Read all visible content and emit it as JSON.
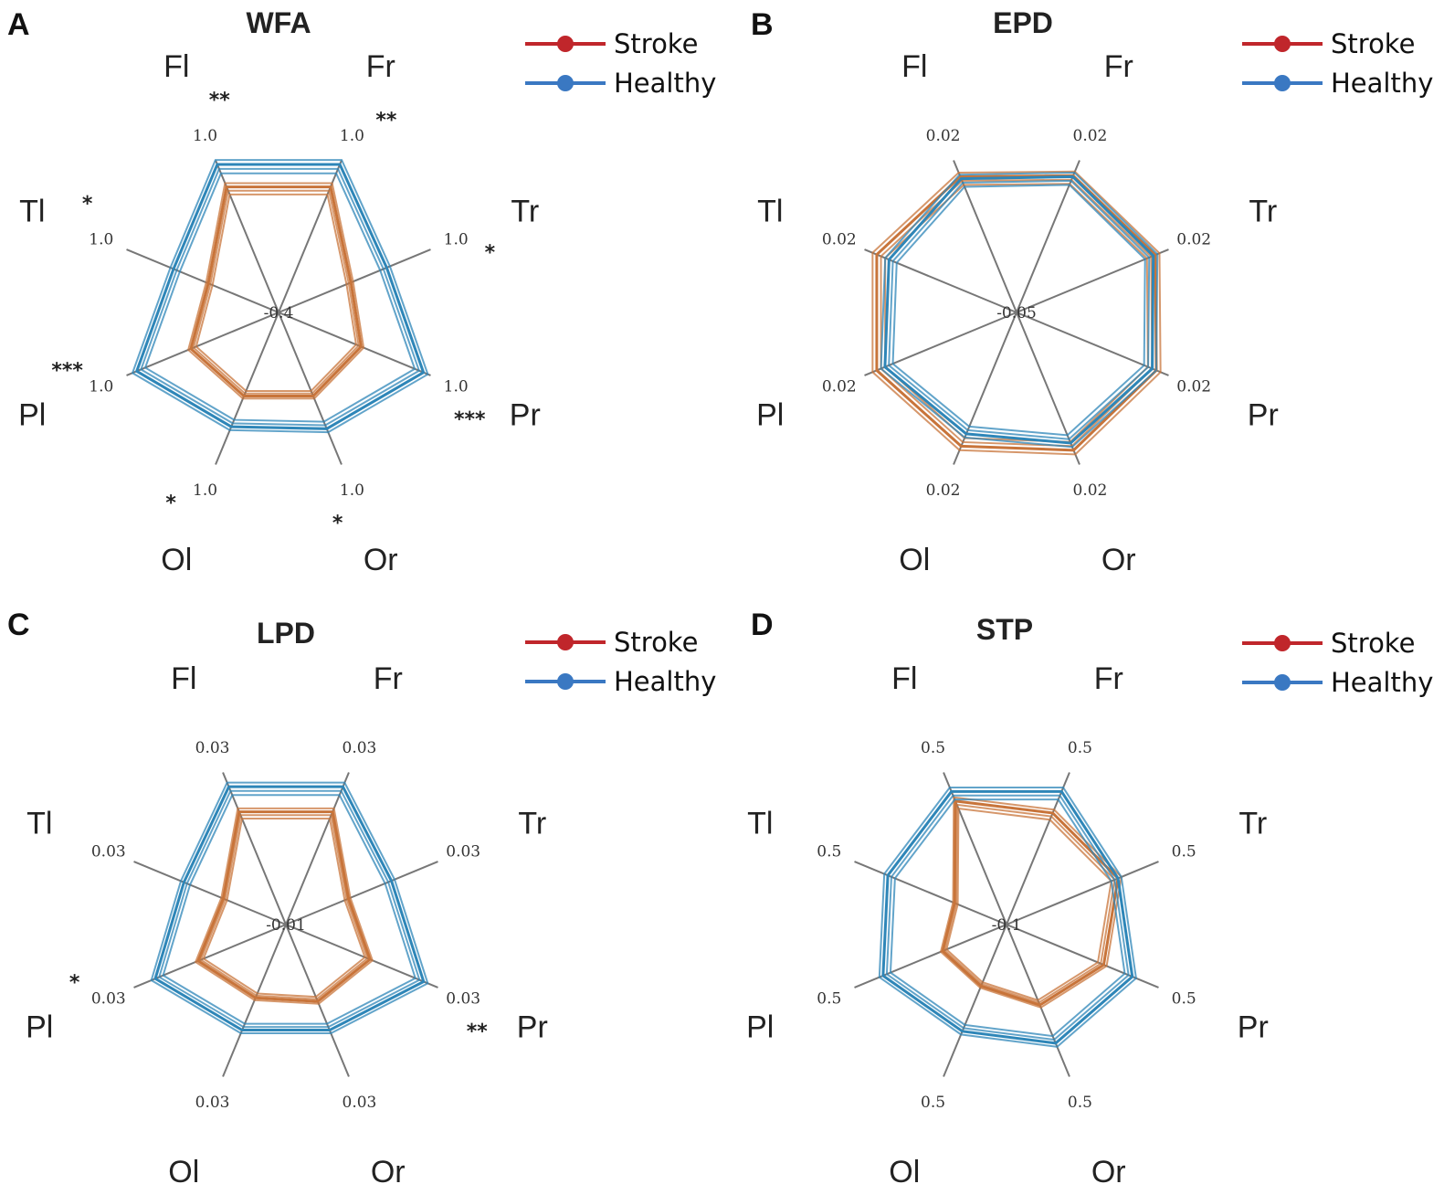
{
  "legend": {
    "stroke": "Stroke",
    "healthy": "Healthy"
  },
  "colors": {
    "stroke_series": "#c8743a",
    "healthy_series": "#2e86b8",
    "legend_stroke": "#c0262b",
    "legend_healthy": "#3a78c2"
  },
  "panels": [
    {
      "letter": "A",
      "title": "WFA",
      "center_label": "-0.4"
    },
    {
      "letter": "B",
      "title": "EPD",
      "center_label": "-0.05"
    },
    {
      "letter": "C",
      "title": "LPD",
      "center_label": "-0.01"
    },
    {
      "letter": "D",
      "title": "STP",
      "center_label": "-0.1"
    }
  ],
  "chart_data": [
    {
      "type": "radar",
      "title": "WFA",
      "axes": [
        "Fr",
        "Tr",
        "Pr",
        "Or",
        "Ol",
        "Pl",
        "Tl",
        "Fl"
      ],
      "axis_max_labels": [
        "1.0",
        "1.0",
        "1.0",
        "1.0",
        "1.0",
        "1.0",
        "1.0",
        "1.0"
      ],
      "axis_min": -0.4,
      "axis_max": 1.0,
      "significance": [
        "**",
        "*",
        "***",
        "*",
        "*",
        "***",
        "*",
        "**"
      ],
      "series": [
        {
          "name": "Stroke",
          "values": [
            0.74,
            0.22,
            0.32,
            0.33,
            0.33,
            0.37,
            0.2,
            0.74
          ]
        },
        {
          "name": "Healthy",
          "values": [
            0.96,
            0.57,
            0.93,
            0.65,
            0.63,
            0.9,
            0.54,
            0.96
          ]
        }
      ]
    },
    {
      "type": "radar",
      "title": "EPD",
      "axes": [
        "Fr",
        "Tr",
        "Pr",
        "Or",
        "Ol",
        "Pl",
        "Tl",
        "Fl"
      ],
      "axis_max_labels": [
        "0.02",
        "0.02",
        "0.02",
        "0.02",
        "0.02",
        "0.02",
        "0.02",
        "0.02"
      ],
      "axis_min": -0.05,
      "axis_max": 0.02,
      "significance": [
        "",
        "",
        "",
        "",
        "",
        "",
        "",
        ""
      ],
      "series": [
        {
          "name": "Stroke",
          "values": [
            0.0125,
            0.0135,
            0.014,
            0.013,
            0.011,
            0.014,
            0.014,
            0.012
          ]
        },
        {
          "name": "Healthy",
          "values": [
            0.012,
            0.0125,
            0.012,
            0.0095,
            0.005,
            0.01,
            0.008,
            0.011
          ]
        }
      ]
    },
    {
      "type": "radar",
      "title": "LPD",
      "axes": [
        "Fr",
        "Tr",
        "Pr",
        "Or",
        "Ol",
        "Pl",
        "Tl",
        "Fl"
      ],
      "axis_max_labels": [
        "0.03",
        "0.03",
        "0.03",
        "0.03",
        "0.03",
        "0.03",
        "0.03",
        "0.03"
      ],
      "axis_min": -0.01,
      "axis_max": 0.03,
      "significance": [
        "",
        "",
        "**",
        "",
        "",
        "*",
        "",
        ""
      ],
      "series": [
        {
          "name": "Stroke",
          "values": [
            0.019,
            0.005,
            0.011,
            0.009,
            0.008,
            0.012,
            0.005,
            0.019
          ]
        },
        {
          "name": "Healthy",
          "values": [
            0.026,
            0.017,
            0.026,
            0.017,
            0.017,
            0.024,
            0.016,
            0.026
          ]
        }
      ]
    },
    {
      "type": "radar",
      "title": "STP",
      "axes": [
        "Fr",
        "Tr",
        "Pr",
        "Or",
        "Ol",
        "Pl",
        "Tl",
        "Fl"
      ],
      "axis_max_labels": [
        "0.5",
        "0.5",
        "0.5",
        "0.5",
        "0.5",
        "0.5",
        "0.5",
        "0.5"
      ],
      "axis_min": -0.1,
      "axis_max": 0.5,
      "significance": [
        "",
        "",
        "",
        "",
        "",
        "",
        "",
        ""
      ],
      "series": [
        {
          "name": "Stroke",
          "values": [
            0.33,
            0.33,
            0.27,
            0.2,
            0.12,
            0.13,
            0.08,
            0.38
          ]
        },
        {
          "name": "Healthy",
          "values": [
            0.42,
            0.33,
            0.39,
            0.36,
            0.31,
            0.38,
            0.36,
            0.42
          ]
        }
      ]
    }
  ]
}
